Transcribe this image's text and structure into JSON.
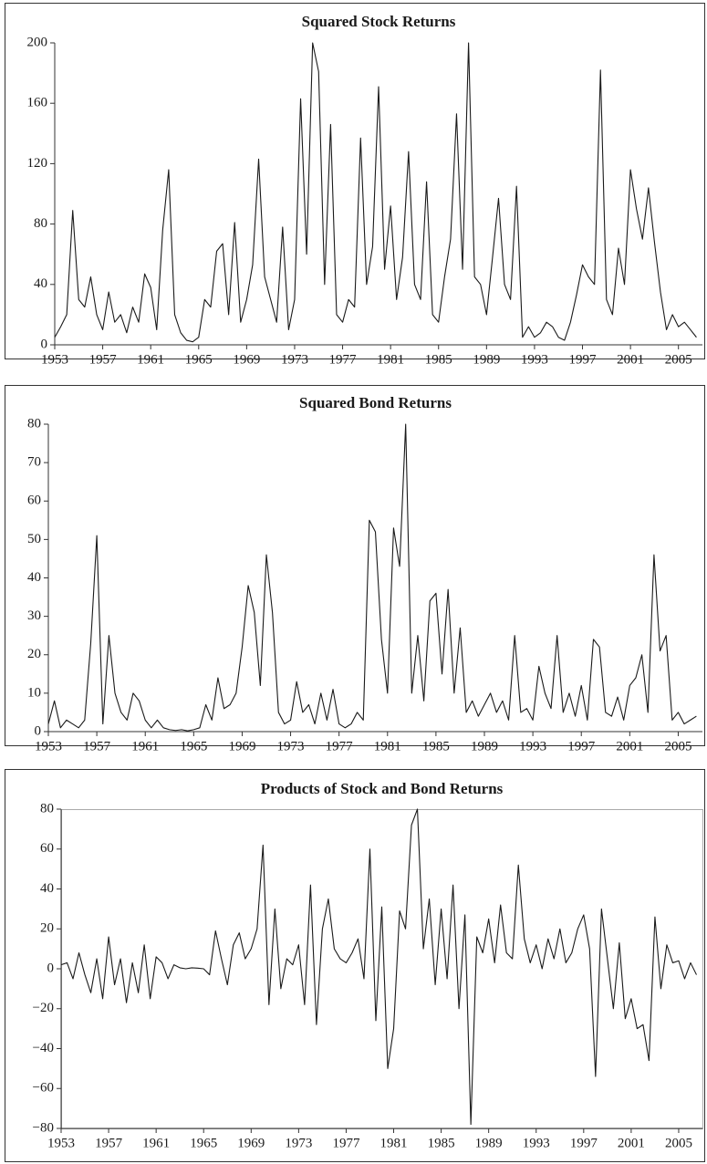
{
  "chart_data": [
    {
      "type": "line",
      "title": "Squared Stock Returns",
      "color": "#1a1a1a",
      "x": [
        1953,
        1953.5,
        1954,
        1954.5,
        1955,
        1955.5,
        1956,
        1956.5,
        1957,
        1957.5,
        1958,
        1958.5,
        1959,
        1959.5,
        1960,
        1960.5,
        1961,
        1961.5,
        1962,
        1962.5,
        1963,
        1963.5,
        1964,
        1964.5,
        1965,
        1965.5,
        1966,
        1966.5,
        1967,
        1967.5,
        1968,
        1968.5,
        1969,
        1969.5,
        1970,
        1970.5,
        1971,
        1971.5,
        1972,
        1972.5,
        1973,
        1973.5,
        1974,
        1974.5,
        1975,
        1975.5,
        1976,
        1976.5,
        1977,
        1977.5,
        1978,
        1978.5,
        1979,
        1979.5,
        1980,
        1980.5,
        1981,
        1981.5,
        1982,
        1982.5,
        1983,
        1983.5,
        1984,
        1984.5,
        1985,
        1985.5,
        1986,
        1986.5,
        1987,
        1987.5,
        1988,
        1988.5,
        1989,
        1989.5,
        1990,
        1990.5,
        1991,
        1991.5,
        1992,
        1992.5,
        1993,
        1993.5,
        1994,
        1994.5,
        1995,
        1995.5,
        1996,
        1996.5,
        1997,
        1997.5,
        1998,
        1998.5,
        1999,
        1999.5,
        2000,
        2000.5,
        2001,
        2001.5,
        2002,
        2002.5,
        2003,
        2003.5,
        2004,
        2004.5,
        2005,
        2005.5,
        2006,
        2006.5
      ],
      "values": [
        5,
        12,
        20,
        89,
        30,
        25,
        45,
        20,
        10,
        35,
        15,
        20,
        8,
        25,
        15,
        47,
        38,
        10,
        76,
        116,
        20,
        8,
        3,
        2,
        5,
        30,
        25,
        62,
        67,
        20,
        81,
        15,
        30,
        53,
        123,
        45,
        30,
        15,
        78,
        10,
        30,
        163,
        60,
        200,
        181,
        40,
        146,
        20,
        15,
        30,
        25,
        137,
        40,
        65,
        171,
        50,
        92,
        30,
        58,
        128,
        40,
        30,
        108,
        20,
        15,
        45,
        70,
        153,
        50,
        200,
        45,
        40,
        20,
        58,
        97,
        40,
        30,
        105,
        5,
        12,
        5,
        8,
        15,
        12,
        5,
        3,
        15,
        33,
        53,
        45,
        40,
        182,
        30,
        20,
        64,
        40,
        116,
        90,
        70,
        104,
        68,
        35,
        10,
        20,
        12,
        15,
        10,
        5
      ],
      "xlim": [
        1953,
        2007
      ],
      "xticks": [
        1953,
        1957,
        1961,
        1965,
        1969,
        1973,
        1977,
        1981,
        1985,
        1989,
        1993,
        1997,
        2001,
        2005
      ],
      "ylim": [
        0,
        200
      ],
      "yticks": [
        0,
        40,
        80,
        120,
        160,
        200
      ]
    },
    {
      "type": "line",
      "title": "Squared Bond Returns",
      "color": "#1a1a1a",
      "x": [
        1953,
        1953.5,
        1954,
        1954.5,
        1955,
        1955.5,
        1956,
        1956.5,
        1957,
        1957.5,
        1958,
        1958.5,
        1959,
        1959.5,
        1960,
        1960.5,
        1961,
        1961.5,
        1962,
        1962.5,
        1963,
        1963.5,
        1964,
        1964.5,
        1965,
        1965.5,
        1966,
        1966.5,
        1967,
        1967.5,
        1968,
        1968.5,
        1969,
        1969.5,
        1970,
        1970.5,
        1971,
        1971.5,
        1972,
        1972.5,
        1973,
        1973.5,
        1974,
        1974.5,
        1975,
        1975.5,
        1976,
        1976.5,
        1977,
        1977.5,
        1978,
        1978.5,
        1979,
        1979.5,
        1980,
        1980.5,
        1981,
        1981.5,
        1982,
        1982.5,
        1983,
        1983.5,
        1984,
        1984.5,
        1985,
        1985.5,
        1986,
        1986.5,
        1987,
        1987.5,
        1988,
        1988.5,
        1989,
        1989.5,
        1990,
        1990.5,
        1991,
        1991.5,
        1992,
        1992.5,
        1993,
        1993.5,
        1994,
        1994.5,
        1995,
        1995.5,
        1996,
        1996.5,
        1997,
        1997.5,
        1998,
        1998.5,
        1999,
        1999.5,
        2000,
        2000.5,
        2001,
        2001.5,
        2002,
        2002.5,
        2003,
        2003.5,
        2004,
        2004.5,
        2005,
        2005.5,
        2006,
        2006.5
      ],
      "values": [
        2,
        8,
        1,
        3,
        2,
        1,
        3,
        23,
        51,
        2,
        25,
        10,
        5,
        3,
        10,
        8,
        3,
        1,
        3,
        1,
        0.5,
        0.3,
        0.5,
        0.2,
        0.5,
        1,
        7,
        3,
        14,
        6,
        7,
        10,
        22,
        38,
        31,
        12,
        46,
        31,
        5,
        2,
        3,
        13,
        5,
        7,
        2,
        10,
        3,
        11,
        2,
        1,
        2,
        5,
        3,
        55,
        52,
        24,
        10,
        53,
        43,
        80,
        10,
        25,
        8,
        34,
        36,
        15,
        37,
        10,
        27,
        5,
        8,
        4,
        7,
        10,
        5,
        8,
        3,
        25,
        5,
        6,
        3,
        17,
        10,
        6,
        25,
        5,
        10,
        4,
        12,
        3,
        24,
        22,
        5,
        4,
        9,
        3,
        12,
        14,
        20,
        5,
        46,
        21,
        25,
        3,
        5,
        2,
        3,
        4
      ],
      "xlim": [
        1953,
        2007
      ],
      "xticks": [
        1953,
        1957,
        1961,
        1965,
        1969,
        1973,
        1977,
        1981,
        1985,
        1989,
        1993,
        1997,
        2001,
        2005
      ],
      "ylim": [
        0,
        80
      ],
      "yticks": [
        0,
        10,
        20,
        30,
        40,
        50,
        60,
        70,
        80
      ]
    },
    {
      "type": "line",
      "title": "Products of Stock and Bond Returns",
      "color": "#1a1a1a",
      "x": [
        1953,
        1953.5,
        1954,
        1954.5,
        1955,
        1955.5,
        1956,
        1956.5,
        1957,
        1957.5,
        1958,
        1958.5,
        1959,
        1959.5,
        1960,
        1960.5,
        1961,
        1961.5,
        1962,
        1962.5,
        1963,
        1963.5,
        1964,
        1964.5,
        1965,
        1965.5,
        1966,
        1966.5,
        1967,
        1967.5,
        1968,
        1968.5,
        1969,
        1969.5,
        1970,
        1970.5,
        1971,
        1971.5,
        1972,
        1972.5,
        1973,
        1973.5,
        1974,
        1974.5,
        1975,
        1975.5,
        1976,
        1976.5,
        1977,
        1977.5,
        1978,
        1978.5,
        1979,
        1979.5,
        1980,
        1980.5,
        1981,
        1981.5,
        1982,
        1982.5,
        1983,
        1983.5,
        1984,
        1984.5,
        1985,
        1985.5,
        1986,
        1986.5,
        1987,
        1987.5,
        1988,
        1988.5,
        1989,
        1989.5,
        1990,
        1990.5,
        1991,
        1991.5,
        1992,
        1992.5,
        1993,
        1993.5,
        1994,
        1994.5,
        1995,
        1995.5,
        1996,
        1996.5,
        1997,
        1997.5,
        1998,
        1998.5,
        1999,
        1999.5,
        2000,
        2000.5,
        2001,
        2001.5,
        2002,
        2002.5,
        2003,
        2003.5,
        2004,
        2004.5,
        2005,
        2005.5,
        2006,
        2006.5
      ],
      "values": [
        2,
        3,
        -5,
        8,
        -3,
        -12,
        5,
        -15,
        16,
        -8,
        5,
        -17,
        3,
        -12,
        12,
        -15,
        6,
        3,
        -5,
        2,
        0.5,
        0,
        0.5,
        0.3,
        0,
        -3,
        19,
        5,
        -8,
        12,
        18,
        5,
        10,
        20,
        62,
        -18,
        30,
        -10,
        5,
        2,
        12,
        -18,
        42,
        -28,
        20,
        35,
        10,
        5,
        3,
        8,
        15,
        -5,
        60,
        -26,
        31,
        -50,
        -30,
        29,
        20,
        72,
        80,
        10,
        35,
        -8,
        30,
        -5,
        42,
        -20,
        27,
        -78,
        16,
        8,
        25,
        3,
        32,
        8,
        5,
        52,
        15,
        3,
        12,
        0,
        15,
        5,
        20,
        3,
        8,
        20,
        27,
        10,
        -54,
        30,
        5,
        -20,
        13,
        -25,
        -15,
        -30,
        -28,
        -46,
        26,
        -10,
        12,
        3,
        4,
        -5,
        3,
        -3
      ],
      "xlim": [
        1953,
        2007
      ],
      "xticks": [
        1953,
        1957,
        1961,
        1965,
        1969,
        1973,
        1977,
        1981,
        1985,
        1989,
        1993,
        1997,
        2001,
        2005
      ],
      "ylim": [
        -80,
        80
      ],
      "yticks": [
        {
          "value": -80,
          "label": "−80"
        },
        {
          "value": -60,
          "label": "−60"
        },
        {
          "value": -40,
          "label": "−40"
        },
        {
          "value": -20,
          "label": "−20"
        },
        0,
        20,
        40,
        60,
        80
      ]
    }
  ]
}
